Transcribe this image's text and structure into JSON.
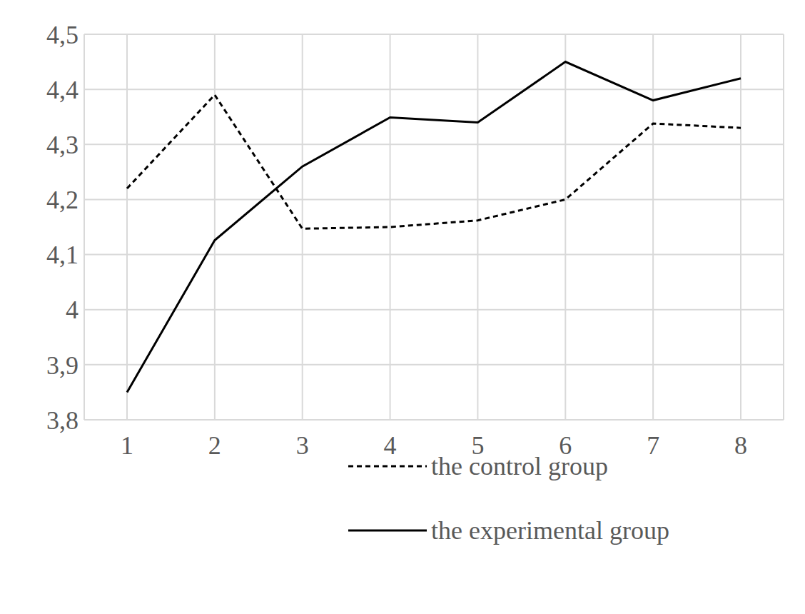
{
  "chart_data": {
    "type": "line",
    "categories": [
      "1",
      "2",
      "3",
      "4",
      "5",
      "6",
      "7",
      "8"
    ],
    "series": [
      {
        "name": "the control group",
        "color": "#000000",
        "line_style": "dashed",
        "values": [
          4.22,
          4.39,
          4.147,
          4.15,
          4.162,
          4.2,
          4.338,
          4.33
        ]
      },
      {
        "name": "the experimental group",
        "color": "#000000",
        "line_style": "solid",
        "values": [
          3.85,
          4.126,
          4.26,
          4.349,
          4.34,
          4.45,
          4.38,
          4.42
        ]
      }
    ],
    "ylim": [
      3.8,
      4.5
    ],
    "yticks": [
      {
        "value": 3.8,
        "label": "3,8"
      },
      {
        "value": 3.9,
        "label": "3,9"
      },
      {
        "value": 4,
        "label": "4"
      },
      {
        "value": 4.1,
        "label": "4,1"
      },
      {
        "value": 4.2,
        "label": "4,2"
      },
      {
        "value": 4.3,
        "label": "4,3"
      },
      {
        "value": 4.4,
        "label": "4,4"
      },
      {
        "value": 4.5,
        "label": "4,5"
      }
    ],
    "grid": true,
    "legend": "lower right"
  }
}
